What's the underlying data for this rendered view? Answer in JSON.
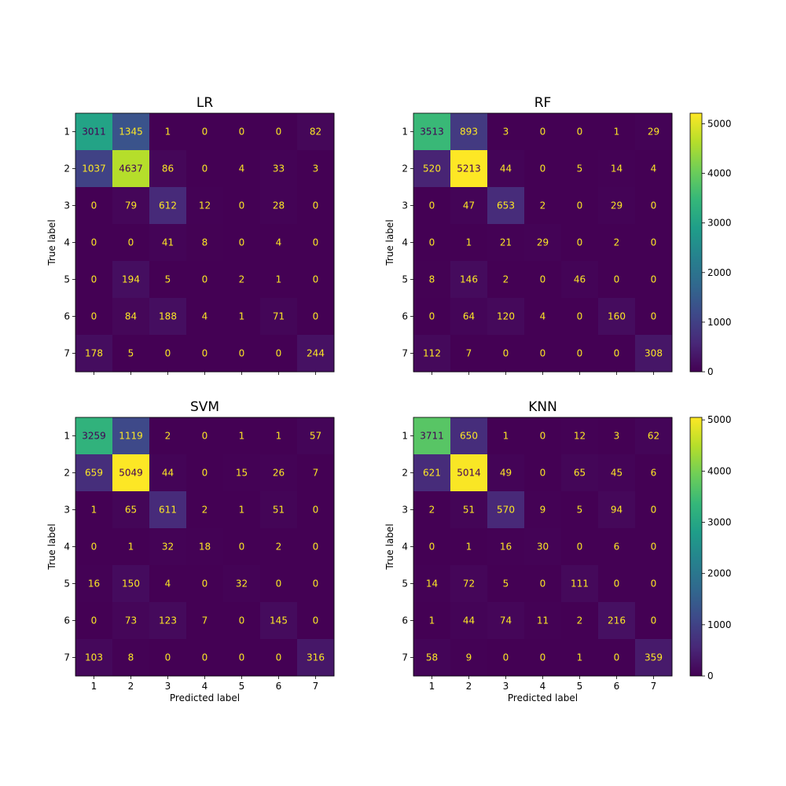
{
  "chart_data": [
    {
      "type": "heatmap",
      "title": "LR",
      "xlabel": "",
      "ylabel": "True label",
      "x_ticks": [
        "",
        "",
        "",
        "",
        "",
        "",
        ""
      ],
      "y_ticks": [
        "1",
        "2",
        "3",
        "4",
        "5",
        "6",
        "7"
      ],
      "matrix": [
        [
          3011,
          1345,
          1,
          0,
          0,
          0,
          82
        ],
        [
          1037,
          4637,
          86,
          0,
          4,
          33,
          3
        ],
        [
          0,
          79,
          612,
          12,
          0,
          28,
          0
        ],
        [
          0,
          0,
          41,
          8,
          0,
          4,
          0
        ],
        [
          0,
          194,
          5,
          0,
          2,
          1,
          0
        ],
        [
          0,
          84,
          188,
          4,
          1,
          71,
          0
        ],
        [
          178,
          5,
          0,
          0,
          0,
          0,
          244
        ]
      ],
      "vmax": 5213,
      "colorbar": false
    },
    {
      "type": "heatmap",
      "title": "RF",
      "xlabel": "",
      "ylabel": "True label",
      "x_ticks": [
        "",
        "",
        "",
        "",
        "",
        "",
        ""
      ],
      "y_ticks": [
        "1",
        "2",
        "3",
        "4",
        "5",
        "6",
        "7"
      ],
      "matrix": [
        [
          3513,
          893,
          3,
          0,
          0,
          1,
          29
        ],
        [
          520,
          5213,
          44,
          0,
          5,
          14,
          4
        ],
        [
          0,
          47,
          653,
          2,
          0,
          29,
          0
        ],
        [
          0,
          1,
          21,
          29,
          0,
          2,
          0
        ],
        [
          8,
          146,
          2,
          0,
          46,
          0,
          0
        ],
        [
          0,
          64,
          120,
          4,
          0,
          160,
          0
        ],
        [
          112,
          7,
          0,
          0,
          0,
          0,
          308
        ]
      ],
      "vmax": 5213,
      "colorbar": true,
      "colorbar_ticks": [
        "0",
        "1000",
        "2000",
        "3000",
        "4000",
        "5000"
      ]
    },
    {
      "type": "heatmap",
      "title": "SVM",
      "xlabel": "Predicted label",
      "ylabel": "True label",
      "x_ticks": [
        "1",
        "2",
        "3",
        "4",
        "5",
        "6",
        "7"
      ],
      "y_ticks": [
        "1",
        "2",
        "3",
        "4",
        "5",
        "6",
        "7"
      ],
      "matrix": [
        [
          3259,
          1119,
          2,
          0,
          1,
          1,
          57
        ],
        [
          659,
          5049,
          44,
          0,
          15,
          26,
          7
        ],
        [
          1,
          65,
          611,
          2,
          1,
          51,
          0
        ],
        [
          0,
          1,
          32,
          18,
          0,
          2,
          0
        ],
        [
          16,
          150,
          4,
          0,
          32,
          0,
          0
        ],
        [
          0,
          73,
          123,
          7,
          0,
          145,
          0
        ],
        [
          103,
          8,
          0,
          0,
          0,
          0,
          316
        ]
      ],
      "vmax": 5049,
      "colorbar": false
    },
    {
      "type": "heatmap",
      "title": "KNN",
      "xlabel": "Predicted label",
      "ylabel": "True label",
      "x_ticks": [
        "1",
        "2",
        "3",
        "4",
        "5",
        "6",
        "7"
      ],
      "y_ticks": [
        "1",
        "2",
        "3",
        "4",
        "5",
        "6",
        "7"
      ],
      "matrix": [
        [
          3711,
          650,
          1,
          0,
          12,
          3,
          62
        ],
        [
          621,
          5014,
          49,
          0,
          65,
          45,
          6
        ],
        [
          2,
          51,
          570,
          9,
          5,
          94,
          0
        ],
        [
          0,
          1,
          16,
          30,
          0,
          6,
          0
        ],
        [
          14,
          72,
          5,
          0,
          111,
          0,
          0
        ],
        [
          1,
          44,
          74,
          11,
          2,
          216,
          0
        ],
        [
          58,
          9,
          0,
          0,
          1,
          0,
          359
        ]
      ],
      "vmax": 5049,
      "colorbar": true,
      "colorbar_ticks": [
        "0",
        "1000",
        "2000",
        "3000",
        "4000",
        "5000"
      ]
    }
  ],
  "colors": {
    "viridis_stops": [
      "#440154",
      "#482878",
      "#3e4989",
      "#31688e",
      "#26828e",
      "#1f9e89",
      "#35b779",
      "#6ece58",
      "#b5de2b",
      "#fde725"
    ],
    "text_on_dark": "#fde725",
    "text_on_light": "#440154"
  }
}
